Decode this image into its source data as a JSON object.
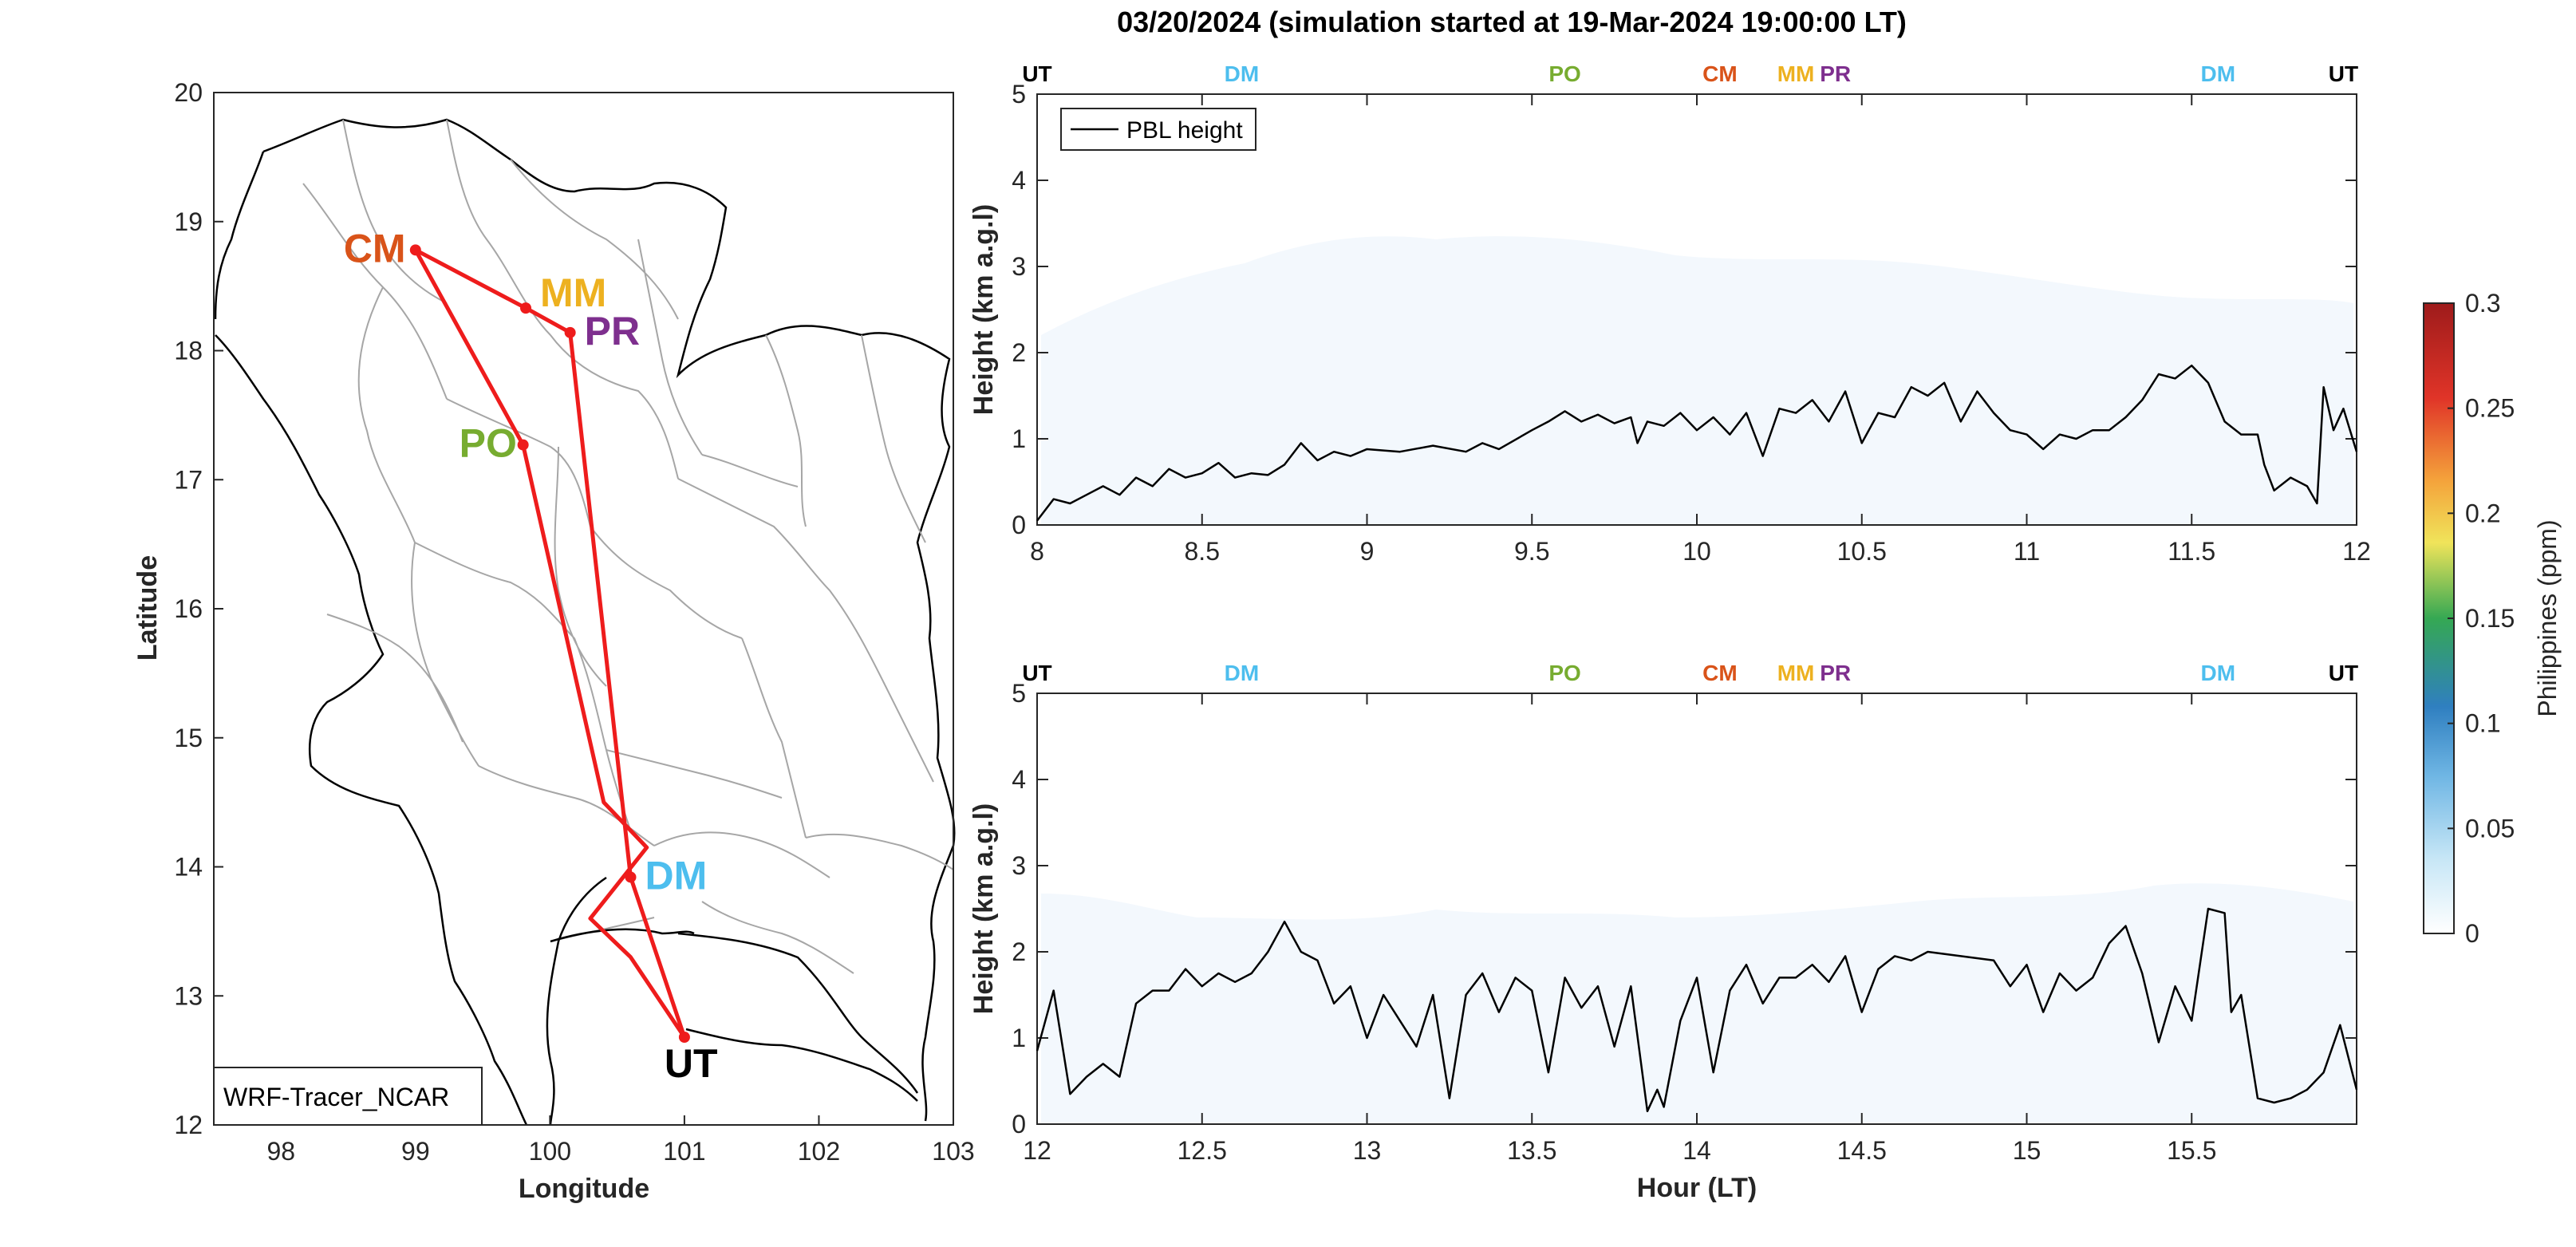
{
  "figure": {
    "title": "03/20/2024 (simulation started at 19-Mar-2024 19:00:00 LT)"
  },
  "map": {
    "xlabel": "Longitude",
    "ylabel": "Latitude",
    "xlim": [
      97.5,
      103
    ],
    "ylim": [
      12,
      20
    ],
    "xticks": [
      "98",
      "99",
      "100",
      "101",
      "102",
      "103"
    ],
    "yticks": [
      "12",
      "13",
      "14",
      "15",
      "16",
      "17",
      "18",
      "19",
      "20"
    ],
    "source_label": "WRF-Tracer_NCAR",
    "route_color": "#ee1c1c",
    "sites": [
      {
        "code": "CM",
        "lon": 99.0,
        "lat": 18.78,
        "color": "#d95319"
      },
      {
        "code": "MM",
        "lon": 99.82,
        "lat": 18.33,
        "color": "#edb120"
      },
      {
        "code": "PR",
        "lon": 100.15,
        "lat": 18.14,
        "color": "#7e2f8e"
      },
      {
        "code": "PO",
        "lon": 99.8,
        "lat": 17.27,
        "color": "#77ac30"
      },
      {
        "code": "DM",
        "lon": 100.6,
        "lat": 13.92,
        "color": "#4dbeee"
      },
      {
        "code": "UT",
        "lon": 101.0,
        "lat": 12.68,
        "color": "#000000"
      }
    ],
    "route": [
      [
        101.0,
        12.68
      ],
      [
        100.6,
        13.92
      ],
      [
        100.15,
        18.14
      ],
      [
        99.82,
        18.33
      ],
      [
        99.0,
        18.78
      ],
      [
        99.8,
        17.27
      ],
      [
        100.4,
        14.5
      ],
      [
        100.72,
        14.15
      ],
      [
        100.3,
        13.6
      ],
      [
        100.6,
        13.3
      ],
      [
        101.0,
        12.68
      ]
    ]
  },
  "chart_data": [
    {
      "type": "line",
      "xlabel": "",
      "ylabel": "Height (km a.g.l)",
      "xlim": [
        8,
        12
      ],
      "ylim": [
        0,
        5
      ],
      "xticks": [
        "8",
        "8.5",
        "9",
        "9.5",
        "10",
        "10.5",
        "11",
        "11.5",
        "12"
      ],
      "yticks": [
        "0",
        "1",
        "2",
        "3",
        "4",
        "5"
      ],
      "legend": "PBL height",
      "legend_position": "top-left",
      "site_markers": [
        {
          "code": "UT",
          "x": 8.0,
          "color": "#000000"
        },
        {
          "code": "DM",
          "x": 8.62,
          "color": "#4dbeee"
        },
        {
          "code": "PO",
          "x": 9.6,
          "color": "#77ac30"
        },
        {
          "code": "CM",
          "x": 10.07,
          "color": "#d95319"
        },
        {
          "code": "MM",
          "x": 10.3,
          "color": "#edb120"
        },
        {
          "code": "PR",
          "x": 10.42,
          "color": "#7e2f8e"
        },
        {
          "code": "DM",
          "x": 11.58,
          "color": "#4dbeee"
        },
        {
          "code": "UT",
          "x": 11.96,
          "color": "#000000"
        }
      ],
      "series": [
        {
          "values": [
            [
              8.0,
              0.05
            ],
            [
              8.05,
              0.3
            ],
            [
              8.1,
              0.25
            ],
            [
              8.15,
              0.35
            ],
            [
              8.2,
              0.45
            ],
            [
              8.25,
              0.35
            ],
            [
              8.3,
              0.55
            ],
            [
              8.35,
              0.45
            ],
            [
              8.4,
              0.65
            ],
            [
              8.45,
              0.55
            ],
            [
              8.5,
              0.6
            ],
            [
              8.55,
              0.72
            ],
            [
              8.6,
              0.55
            ],
            [
              8.65,
              0.6
            ],
            [
              8.7,
              0.58
            ],
            [
              8.75,
              0.7
            ],
            [
              8.8,
              0.95
            ],
            [
              8.85,
              0.75
            ],
            [
              8.9,
              0.85
            ],
            [
              8.95,
              0.8
            ],
            [
              9.0,
              0.88
            ],
            [
              9.1,
              0.85
            ],
            [
              9.2,
              0.92
            ],
            [
              9.3,
              0.85
            ],
            [
              9.35,
              0.95
            ],
            [
              9.4,
              0.88
            ],
            [
              9.5,
              1.1
            ],
            [
              9.55,
              1.2
            ],
            [
              9.6,
              1.32
            ],
            [
              9.65,
              1.2
            ],
            [
              9.7,
              1.28
            ],
            [
              9.75,
              1.18
            ],
            [
              9.8,
              1.25
            ],
            [
              9.82,
              0.95
            ],
            [
              9.85,
              1.2
            ],
            [
              9.9,
              1.15
            ],
            [
              9.95,
              1.3
            ],
            [
              10.0,
              1.1
            ],
            [
              10.05,
              1.25
            ],
            [
              10.1,
              1.05
            ],
            [
              10.15,
              1.3
            ],
            [
              10.2,
              0.8
            ],
            [
              10.25,
              1.35
            ],
            [
              10.3,
              1.3
            ],
            [
              10.35,
              1.45
            ],
            [
              10.4,
              1.2
            ],
            [
              10.45,
              1.55
            ],
            [
              10.5,
              0.95
            ],
            [
              10.55,
              1.3
            ],
            [
              10.6,
              1.25
            ],
            [
              10.65,
              1.6
            ],
            [
              10.7,
              1.5
            ],
            [
              10.75,
              1.65
            ],
            [
              10.8,
              1.2
            ],
            [
              10.85,
              1.55
            ],
            [
              10.9,
              1.3
            ],
            [
              10.95,
              1.1
            ],
            [
              11.0,
              1.05
            ],
            [
              11.05,
              0.88
            ],
            [
              11.1,
              1.05
            ],
            [
              11.15,
              1.0
            ],
            [
              11.2,
              1.1
            ],
            [
              11.25,
              1.1
            ],
            [
              11.3,
              1.25
            ],
            [
              11.35,
              1.45
            ],
            [
              11.4,
              1.75
            ],
            [
              11.45,
              1.7
            ],
            [
              11.5,
              1.85
            ],
            [
              11.55,
              1.65
            ],
            [
              11.6,
              1.2
            ],
            [
              11.65,
              1.05
            ],
            [
              11.7,
              1.05
            ],
            [
              11.72,
              0.7
            ],
            [
              11.75,
              0.4
            ],
            [
              11.8,
              0.55
            ],
            [
              11.85,
              0.45
            ],
            [
              11.88,
              0.25
            ],
            [
              11.9,
              1.6
            ],
            [
              11.93,
              1.1
            ],
            [
              11.96,
              1.35
            ],
            [
              12.0,
              0.85
            ]
          ]
        }
      ]
    },
    {
      "type": "line",
      "xlabel": "Hour (LT)",
      "ylabel": "Height (km a.g.l)",
      "xlim": [
        12,
        16
      ],
      "ylim": [
        0,
        5
      ],
      "xticks": [
        "12",
        "12.5",
        "13",
        "13.5",
        "14",
        "14.5",
        "15",
        "15.5"
      ],
      "yticks": [
        "0",
        "1",
        "2",
        "3",
        "4",
        "5"
      ],
      "site_markers": [
        {
          "code": "UT",
          "x": 12.0,
          "color": "#000000"
        },
        {
          "code": "DM",
          "x": 12.62,
          "color": "#4dbeee"
        },
        {
          "code": "PO",
          "x": 13.6,
          "color": "#77ac30"
        },
        {
          "code": "CM",
          "x": 14.07,
          "color": "#d95319"
        },
        {
          "code": "MM",
          "x": 14.3,
          "color": "#edb120"
        },
        {
          "code": "PR",
          "x": 14.42,
          "color": "#7e2f8e"
        },
        {
          "code": "DM",
          "x": 15.58,
          "color": "#4dbeee"
        },
        {
          "code": "UT",
          "x": 15.96,
          "color": "#000000"
        }
      ],
      "series": [
        {
          "values": [
            [
              12.0,
              0.85
            ],
            [
              12.05,
              1.55
            ],
            [
              12.1,
              0.35
            ],
            [
              12.15,
              0.55
            ],
            [
              12.2,
              0.7
            ],
            [
              12.25,
              0.55
            ],
            [
              12.3,
              1.4
            ],
            [
              12.35,
              1.55
            ],
            [
              12.4,
              1.55
            ],
            [
              12.45,
              1.8
            ],
            [
              12.5,
              1.6
            ],
            [
              12.55,
              1.75
            ],
            [
              12.6,
              1.65
            ],
            [
              12.65,
              1.75
            ],
            [
              12.7,
              2.0
            ],
            [
              12.75,
              2.35
            ],
            [
              12.8,
              2.0
            ],
            [
              12.85,
              1.9
            ],
            [
              12.9,
              1.4
            ],
            [
              12.95,
              1.6
            ],
            [
              13.0,
              1.0
            ],
            [
              13.05,
              1.5
            ],
            [
              13.1,
              1.2
            ],
            [
              13.15,
              0.9
            ],
            [
              13.2,
              1.5
            ],
            [
              13.25,
              0.3
            ],
            [
              13.3,
              1.5
            ],
            [
              13.35,
              1.75
            ],
            [
              13.4,
              1.3
            ],
            [
              13.45,
              1.7
            ],
            [
              13.5,
              1.55
            ],
            [
              13.55,
              0.6
            ],
            [
              13.6,
              1.7
            ],
            [
              13.65,
              1.35
            ],
            [
              13.7,
              1.6
            ],
            [
              13.75,
              0.9
            ],
            [
              13.8,
              1.6
            ],
            [
              13.85,
              0.15
            ],
            [
              13.88,
              0.4
            ],
            [
              13.9,
              0.2
            ],
            [
              13.95,
              1.2
            ],
            [
              14.0,
              1.7
            ],
            [
              14.05,
              0.6
            ],
            [
              14.1,
              1.55
            ],
            [
              14.15,
              1.85
            ],
            [
              14.2,
              1.4
            ],
            [
              14.25,
              1.7
            ],
            [
              14.3,
              1.7
            ],
            [
              14.35,
              1.85
            ],
            [
              14.4,
              1.65
            ],
            [
              14.45,
              1.95
            ],
            [
              14.5,
              1.3
            ],
            [
              14.55,
              1.8
            ],
            [
              14.6,
              1.95
            ],
            [
              14.65,
              1.9
            ],
            [
              14.7,
              2.0
            ],
            [
              14.8,
              1.95
            ],
            [
              14.9,
              1.9
            ],
            [
              14.95,
              1.6
            ],
            [
              15.0,
              1.85
            ],
            [
              15.05,
              1.3
            ],
            [
              15.1,
              1.75
            ],
            [
              15.15,
              1.55
            ],
            [
              15.2,
              1.7
            ],
            [
              15.25,
              2.1
            ],
            [
              15.3,
              2.3
            ],
            [
              15.35,
              1.75
            ],
            [
              15.4,
              0.95
            ],
            [
              15.45,
              1.6
            ],
            [
              15.5,
              1.2
            ],
            [
              15.55,
              2.5
            ],
            [
              15.6,
              2.45
            ],
            [
              15.62,
              1.3
            ],
            [
              15.65,
              1.5
            ],
            [
              15.7,
              0.3
            ],
            [
              15.75,
              0.25
            ],
            [
              15.8,
              0.3
            ],
            [
              15.85,
              0.4
            ],
            [
              15.9,
              0.6
            ],
            [
              15.95,
              1.15
            ],
            [
              16.0,
              0.4
            ]
          ]
        }
      ]
    }
  ],
  "colorbar": {
    "title": "Philippines (ppm)",
    "ticks": [
      "0",
      "0.05",
      "0.1",
      "0.15",
      "0.2",
      "0.25",
      "0.3"
    ],
    "range": [
      0,
      0.3
    ]
  }
}
